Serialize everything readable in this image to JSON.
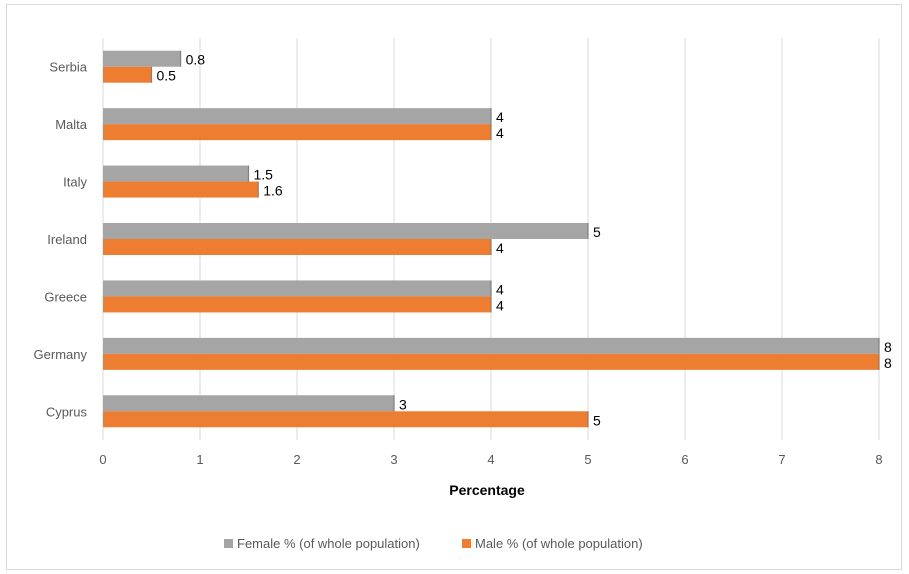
{
  "chart_data": {
    "type": "bar",
    "orientation": "horizontal",
    "categories": [
      "Serbia",
      "Malta",
      "Italy",
      "Ireland",
      "Greece",
      "Germany",
      "Cyprus"
    ],
    "series": [
      {
        "name": "Female % (of whole population)",
        "color": "#a5a5a5",
        "values": [
          0.8,
          4,
          1.5,
          5,
          4,
          8,
          3
        ]
      },
      {
        "name": "Male % (of whole population)",
        "color": "#ed7d31",
        "values": [
          0.5,
          4,
          1.6,
          4,
          4,
          8,
          5
        ]
      }
    ],
    "value_labels": {
      "female": [
        "0.8",
        "4",
        "1.5",
        "5",
        "4",
        "8",
        "3"
      ],
      "male": [
        "0.5",
        "4",
        "1.6",
        "4",
        "4",
        "8",
        "5"
      ]
    },
    "xlabel": "Percentage",
    "xlim": [
      0,
      8
    ],
    "xticks": [
      "0",
      "1",
      "2",
      "3",
      "4",
      "5",
      "6",
      "7",
      "8"
    ],
    "grid": true,
    "legend_position": "bottom"
  }
}
